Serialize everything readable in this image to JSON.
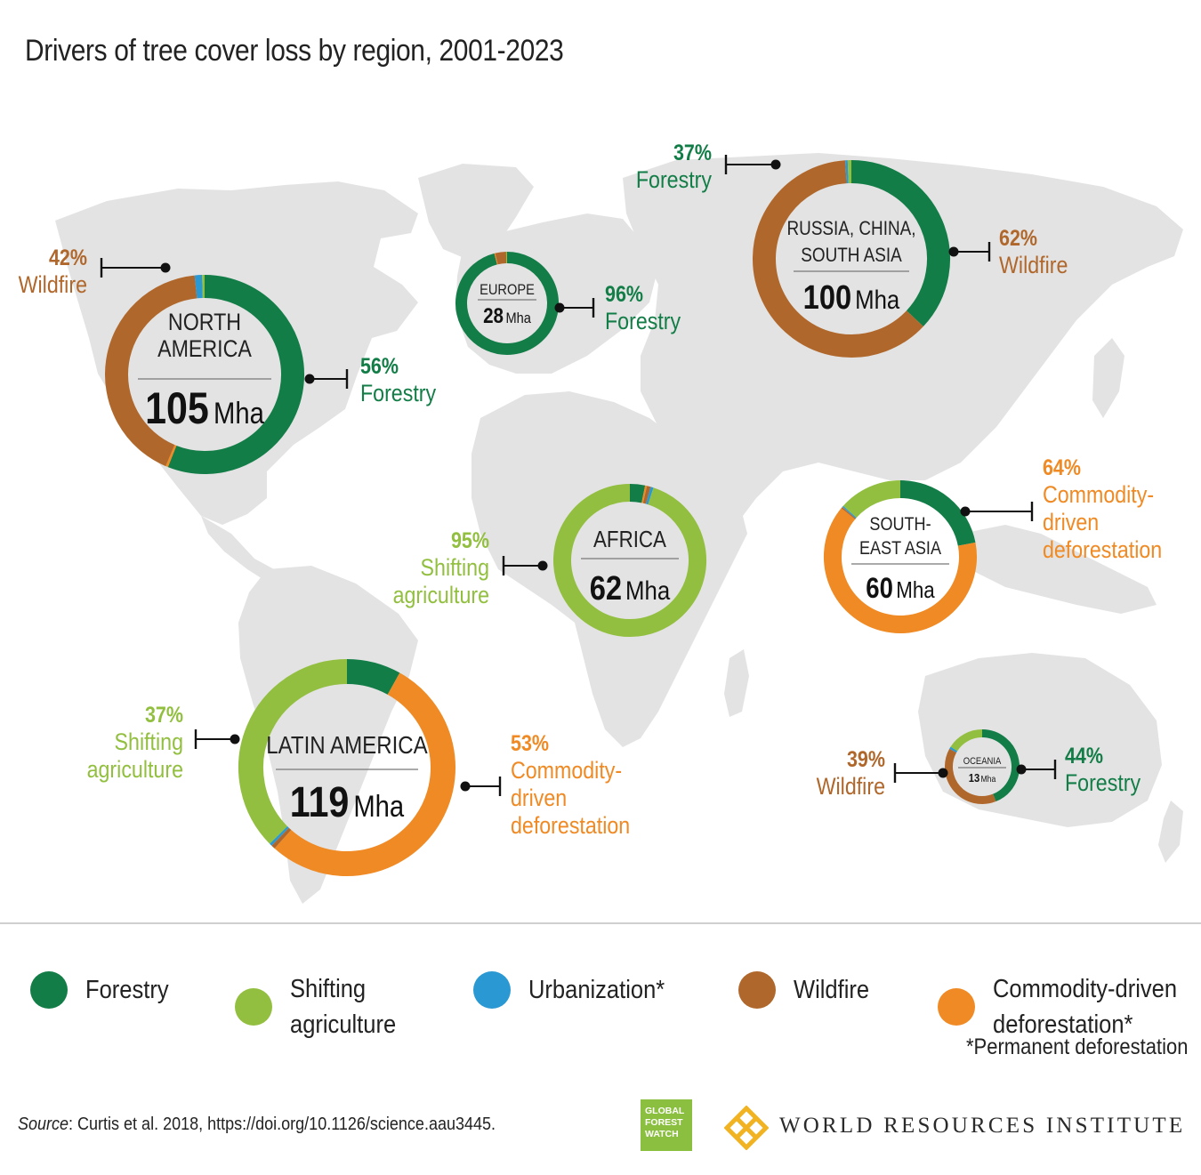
{
  "title": "Drivers of tree cover loss by region, 2001-2023",
  "colors": {
    "forestry": "#127d47",
    "shifting": "#92bf3f",
    "urbanization": "#2a98d3",
    "wildfire": "#b0672b",
    "commodity": "#ef8a24",
    "map": "#e3e3e3"
  },
  "chart_data": {
    "type": "pie",
    "variant": "donut-on-map",
    "units": "Mha",
    "regions": [
      {
        "id": "north-america",
        "name_lines": [
          "NORTH",
          "AMERICA"
        ],
        "total": 105,
        "total_label": "105",
        "unit_label": "Mha",
        "shares": {
          "forestry": 0.56,
          "commodity": 0.004,
          "wildfire": 0.42,
          "urbanization": 0.012,
          "shifting": 0.004
        },
        "callouts": [
          {
            "pct": "56%",
            "lines": [
              "Forestry"
            ],
            "driver": "forestry"
          },
          {
            "pct": "42%",
            "lines": [
              "Wildfire"
            ],
            "driver": "wildfire"
          }
        ]
      },
      {
        "id": "europe",
        "name_lines": [
          "EUROPE"
        ],
        "total": 28,
        "total_label": "28",
        "unit_label": "Mha",
        "shares": {
          "forestry": 0.96,
          "commodity": 0.003,
          "wildfire": 0.034,
          "urbanization": 0.0,
          "shifting": 0.003
        },
        "callouts": [
          {
            "pct": "96%",
            "lines": [
              "Forestry"
            ],
            "driver": "forestry"
          }
        ]
      },
      {
        "id": "russia-china-south-asia",
        "name_lines": [
          "RUSSIA, CHINA,",
          "SOUTH ASIA"
        ],
        "total": 100,
        "total_label": "100",
        "unit_label": "Mha",
        "shares": {
          "forestry": 0.37,
          "commodity": 0.0,
          "wildfire": 0.62,
          "urbanization": 0.004,
          "shifting": 0.006
        },
        "callouts": [
          {
            "pct": "37%",
            "lines": [
              "Forestry"
            ],
            "driver": "forestry"
          },
          {
            "pct": "62%",
            "lines": [
              "Wildfire"
            ],
            "driver": "wildfire"
          }
        ]
      },
      {
        "id": "africa",
        "name_lines": [
          "AFRICA"
        ],
        "total": 62,
        "total_label": "62",
        "unit_label": "Mha",
        "shares": {
          "forestry": 0.032,
          "commodity": 0.004,
          "wildfire": 0.008,
          "urbanization": 0.006,
          "shifting": 0.95
        },
        "callouts": [
          {
            "pct": "95%",
            "lines": [
              "Shifting",
              "agriculture"
            ],
            "driver": "shifting"
          }
        ]
      },
      {
        "id": "southeast-asia",
        "name_lines": [
          "SOUTH-",
          "EAST ASIA"
        ],
        "total": 60,
        "total_label": "60",
        "unit_label": "Mha",
        "shares": {
          "forestry": 0.22,
          "commodity": 0.64,
          "wildfire": 0.003,
          "urbanization": 0.003,
          "shifting": 0.134
        },
        "callouts": [
          {
            "pct": "64%",
            "lines": [
              "Commodity-",
              "driven",
              "deforestation"
            ],
            "driver": "commodity"
          }
        ]
      },
      {
        "id": "latin-america",
        "name_lines": [
          "LATIN AMERICA"
        ],
        "total": 119,
        "total_label": "119",
        "unit_label": "Mha",
        "shares": {
          "forestry": 0.08,
          "commodity": 0.53,
          "wildfire": 0.006,
          "urbanization": 0.004,
          "shifting": 0.37
        },
        "callouts": [
          {
            "pct": "53%",
            "lines": [
              "Commodity-",
              "driven",
              "deforestation"
            ],
            "driver": "commodity"
          },
          {
            "pct": "37%",
            "lines": [
              "Shifting",
              "agriculture"
            ],
            "driver": "shifting"
          }
        ]
      },
      {
        "id": "oceania",
        "name_lines": [
          "OCEANIA"
        ],
        "total": 13,
        "total_label": "13",
        "unit_label": "Mha",
        "shares": {
          "forestry": 0.44,
          "commodity": 0.0,
          "wildfire": 0.39,
          "urbanization": 0.01,
          "shifting": 0.16
        },
        "callouts": [
          {
            "pct": "44%",
            "lines": [
              "Forestry"
            ],
            "driver": "forestry"
          },
          {
            "pct": "39%",
            "lines": [
              "Wildfire"
            ],
            "driver": "wildfire"
          }
        ]
      }
    ],
    "legend": [
      {
        "driver": "forestry",
        "label_lines": [
          "Forestry"
        ]
      },
      {
        "driver": "shifting",
        "label_lines": [
          "Shifting",
          "agriculture"
        ]
      },
      {
        "driver": "urbanization",
        "label_lines": [
          "Urbanization*"
        ]
      },
      {
        "driver": "wildfire",
        "label_lines": [
          "Wildfire"
        ]
      },
      {
        "driver": "commodity",
        "label_lines": [
          "Commodity-driven",
          "deforestation*"
        ]
      }
    ]
  },
  "footnote": "*Permanent deforestation",
  "source": {
    "label": "Source",
    "text": ": Curtis et al. 2018, https://doi.org/10.1126/science.aau3445."
  },
  "logos": {
    "gfw_lines": [
      "GLOBAL",
      "FOREST",
      "WATCH"
    ],
    "wri": "WORLD RESOURCES INSTITUTE"
  }
}
